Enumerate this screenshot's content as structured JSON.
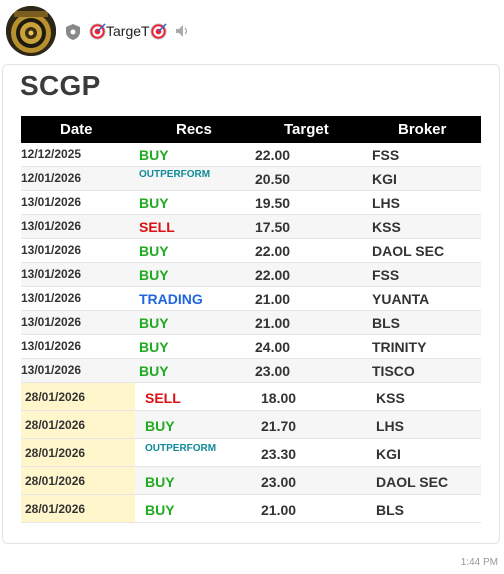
{
  "channel": {
    "name": "TargeT",
    "time": "1:44 PM"
  },
  "title": "SCGP",
  "columns": [
    "Date",
    "Recs",
    "Target",
    "Broker"
  ],
  "colors": {
    "buy": "#22aa22",
    "sell": "#dd1111",
    "outperform": "#118a99",
    "trading": "#2266dd",
    "highlight": "#fff6cc"
  },
  "rows": [
    {
      "date": "12/12/2025",
      "rec": "BUY",
      "kind": "buy",
      "target": "22.00",
      "broker": "FSS"
    },
    {
      "date": "12/01/2026",
      "rec": "OUTPERFORM",
      "kind": "outperform",
      "target": "20.50",
      "broker": "KGI"
    },
    {
      "date": "13/01/2026",
      "rec": "BUY",
      "kind": "buy",
      "target": "19.50",
      "broker": "LHS"
    },
    {
      "date": "13/01/2026",
      "rec": "SELL",
      "kind": "sell",
      "target": "17.50",
      "broker": "KSS"
    },
    {
      "date": "13/01/2026",
      "rec": "BUY",
      "kind": "buy",
      "target": "22.00",
      "broker": "DAOL SEC"
    },
    {
      "date": "13/01/2026",
      "rec": "BUY",
      "kind": "buy",
      "target": "22.00",
      "broker": "FSS"
    },
    {
      "date": "13/01/2026",
      "rec": "TRADING",
      "kind": "trading",
      "target": "21.00",
      "broker": "YUANTA"
    },
    {
      "date": "13/01/2026",
      "rec": "BUY",
      "kind": "buy",
      "target": "21.00",
      "broker": "BLS"
    },
    {
      "date": "13/01/2026",
      "rec": "BUY",
      "kind": "buy",
      "target": "24.00",
      "broker": "TRINITY"
    },
    {
      "date": "13/01/2026",
      "rec": "BUY",
      "kind": "buy",
      "target": "23.00",
      "broker": "TISCO"
    },
    {
      "date": "28/01/2026",
      "rec": "SELL",
      "kind": "sell",
      "target": "18.00",
      "broker": "KSS",
      "highlight": true
    },
    {
      "date": "28/01/2026",
      "rec": "BUY",
      "kind": "buy",
      "target": "21.70",
      "broker": "LHS",
      "highlight": true
    },
    {
      "date": "28/01/2026",
      "rec": "OUTPERFORM",
      "kind": "outperform",
      "target": "23.30",
      "broker": "KGI",
      "highlight": true
    },
    {
      "date": "28/01/2026",
      "rec": "BUY",
      "kind": "buy",
      "target": "23.00",
      "broker": "DAOL SEC",
      "highlight": true
    },
    {
      "date": "28/01/2026",
      "rec": "BUY",
      "kind": "buy",
      "target": "21.00",
      "broker": "BLS",
      "highlight": true
    }
  ]
}
